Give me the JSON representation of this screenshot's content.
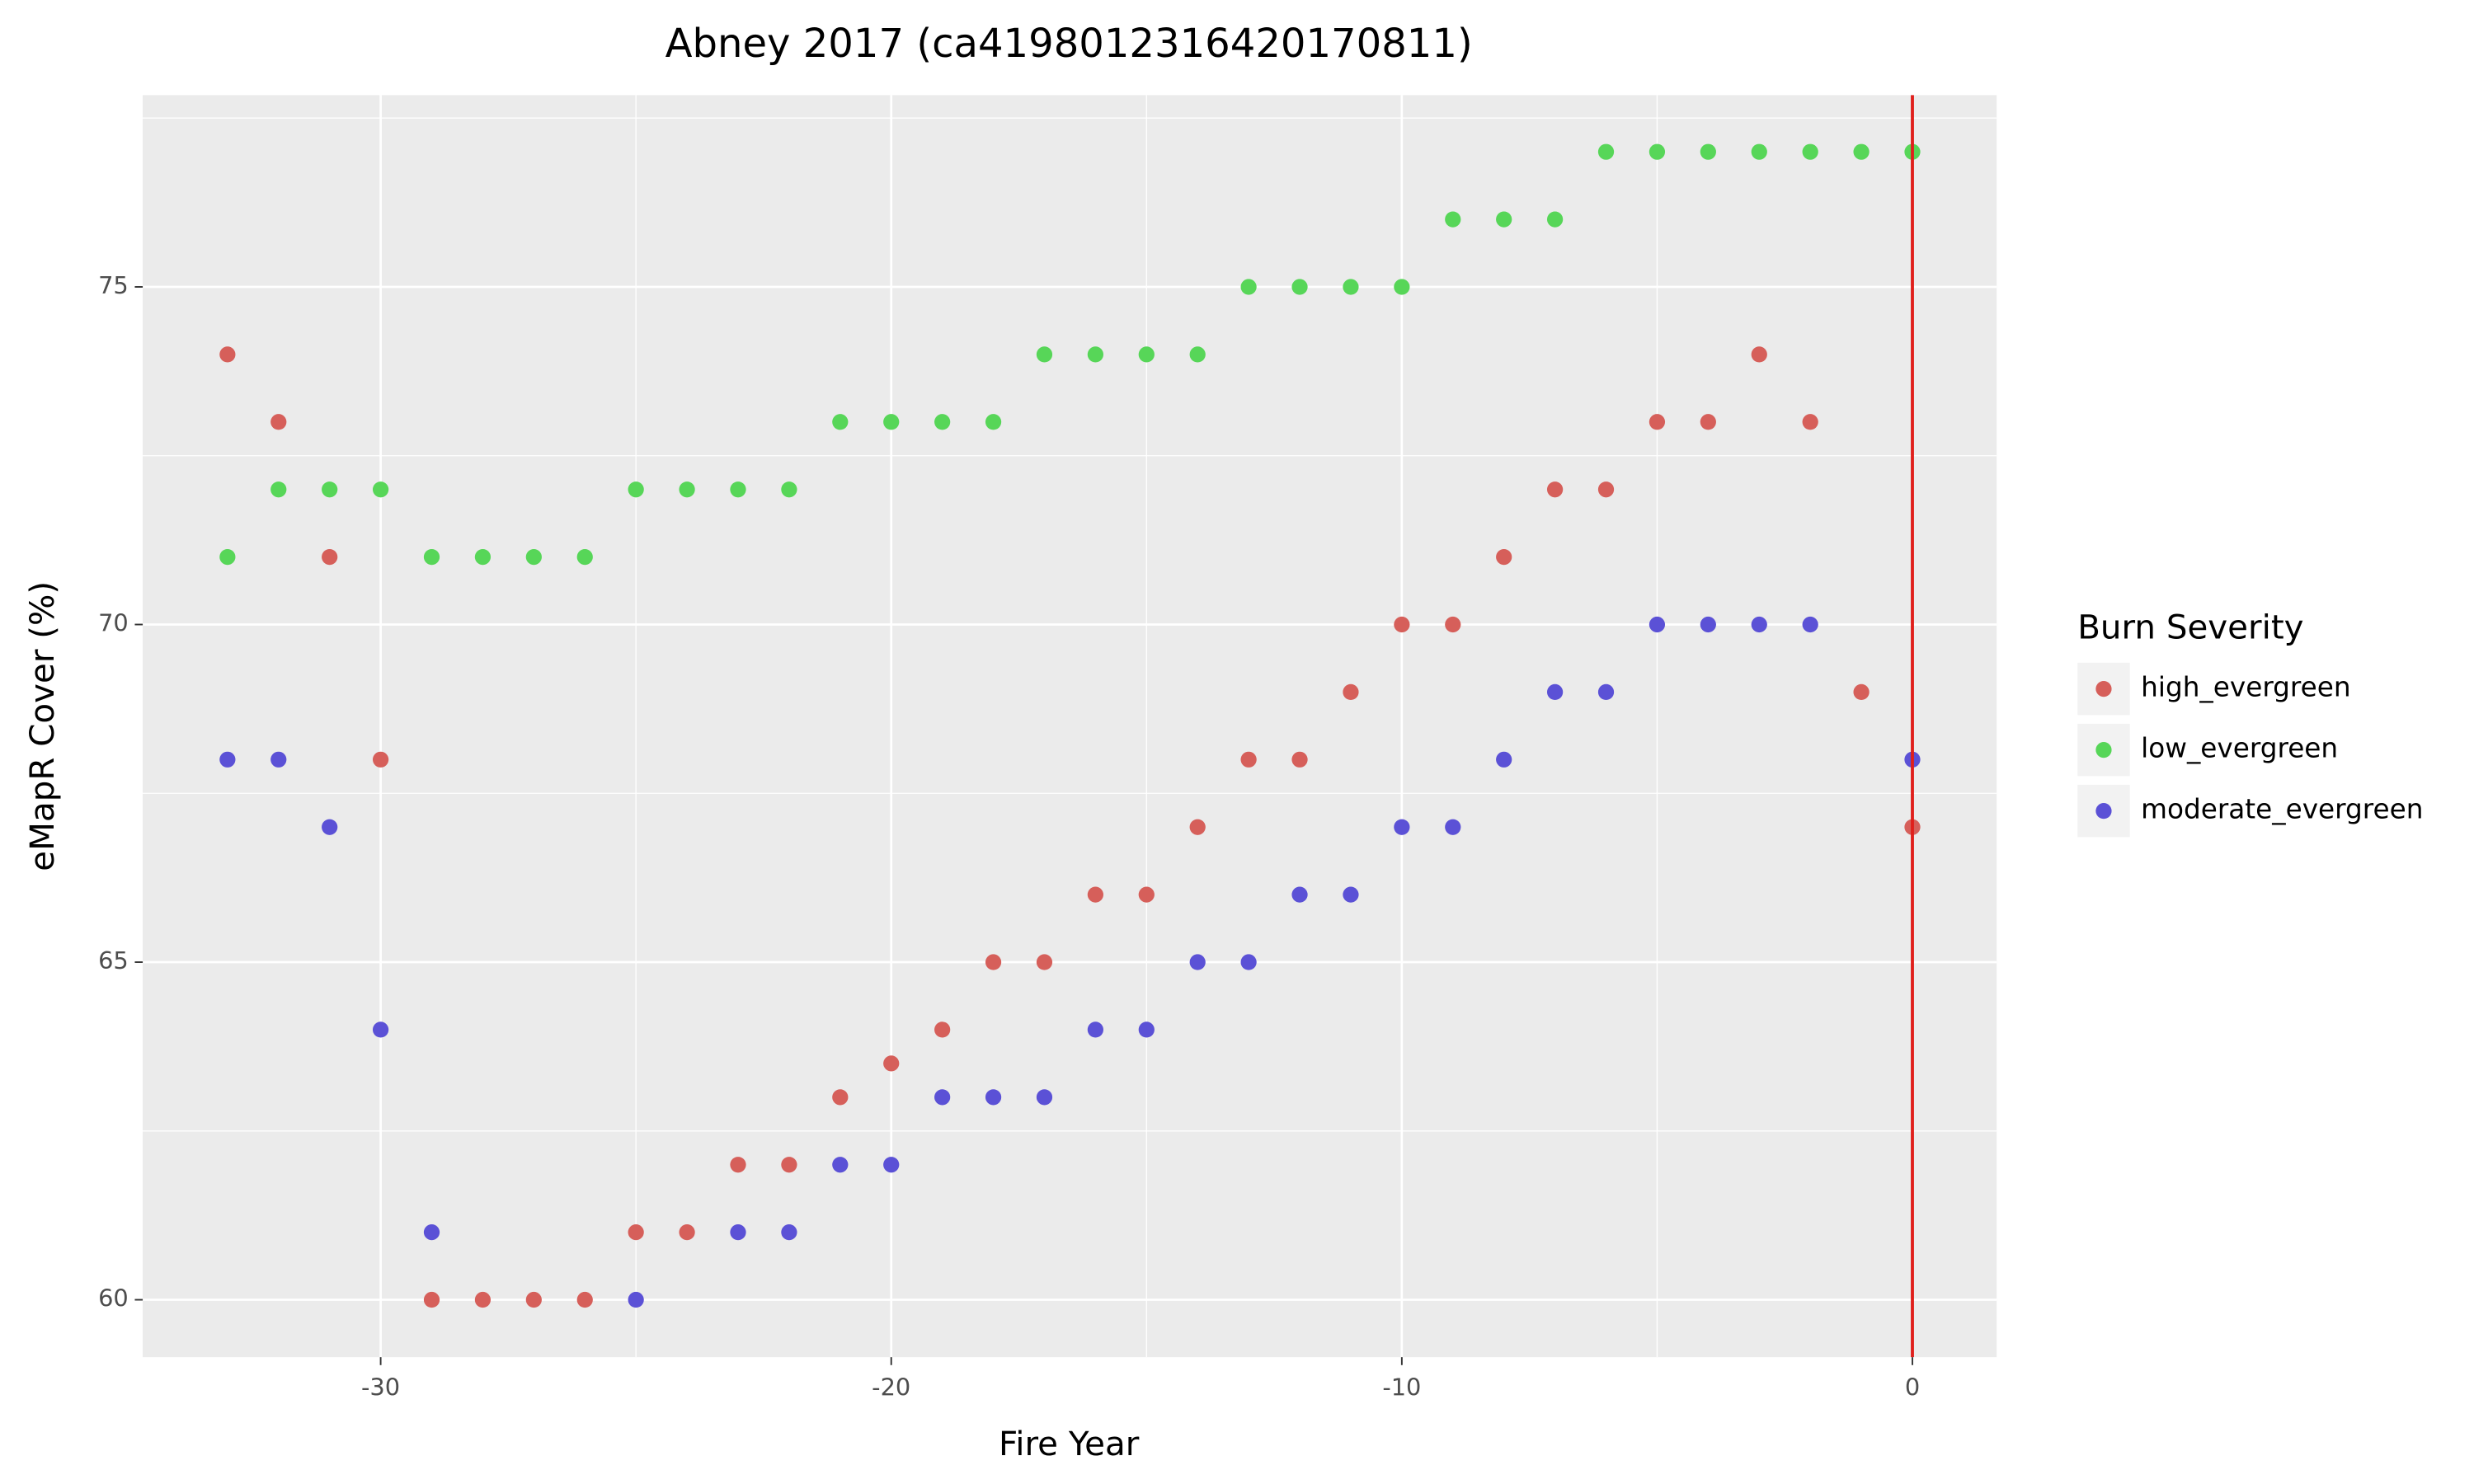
{
  "chart_data": {
    "type": "scatter",
    "title": "Abney 2017 (ca4198012316420170811)",
    "x_label": "Fire Year",
    "y_label": "eMapR Cover (%)",
    "x": [
      -33,
      -32,
      -31,
      -30,
      -29,
      -28,
      -27,
      -26,
      -25,
      -24,
      -23,
      -22,
      -21,
      -20,
      -19,
      -18,
      -17,
      -16,
      -15,
      -14,
      -13,
      -12,
      -11,
      -10,
      -9,
      -8,
      -7,
      -6,
      -5,
      -4,
      -3,
      -2,
      -1,
      0
    ],
    "series": [
      {
        "name": "high_evergreen",
        "color": "#d65f5a",
        "values": [
          74,
          73,
          71,
          68,
          60,
          60,
          60,
          60,
          61,
          61,
          62,
          62,
          63,
          63.5,
          64,
          65,
          65,
          66,
          66,
          67,
          68,
          68,
          69,
          70,
          70,
          71,
          72,
          72,
          73,
          73,
          74,
          73,
          69,
          67
        ]
      },
      {
        "name": "low_evergreen",
        "color": "#57d658",
        "values": [
          71,
          72,
          72,
          72,
          71,
          71,
          71,
          71,
          72,
          72,
          72,
          72,
          73,
          73,
          73,
          73,
          74,
          74,
          74,
          74,
          75,
          75,
          75,
          75,
          76,
          76,
          76,
          77,
          77,
          77,
          77,
          77,
          77,
          77
        ]
      },
      {
        "name": "moderate_evergreen",
        "color": "#5b51d6",
        "values": [
          68,
          68,
          67,
          64,
          61,
          null,
          null,
          null,
          60,
          null,
          61,
          61,
          62,
          62,
          63,
          63,
          63,
          64,
          64,
          65,
          65,
          66,
          66,
          67,
          67,
          68,
          69,
          69,
          70,
          70,
          70,
          70,
          null,
          68
        ]
      }
    ],
    "legend_title": "Burn Severity",
    "legend": "right",
    "xlim": [
      -34.66,
      1.65
    ],
    "xticks": [
      -30,
      -20,
      -10,
      0
    ],
    "ylim": [
      59.15,
      77.84
    ],
    "yticks": [
      60,
      65,
      70,
      75
    ],
    "grid": true,
    "minor_grid": true,
    "vline": 0,
    "vline_color": "#e0201c"
  }
}
